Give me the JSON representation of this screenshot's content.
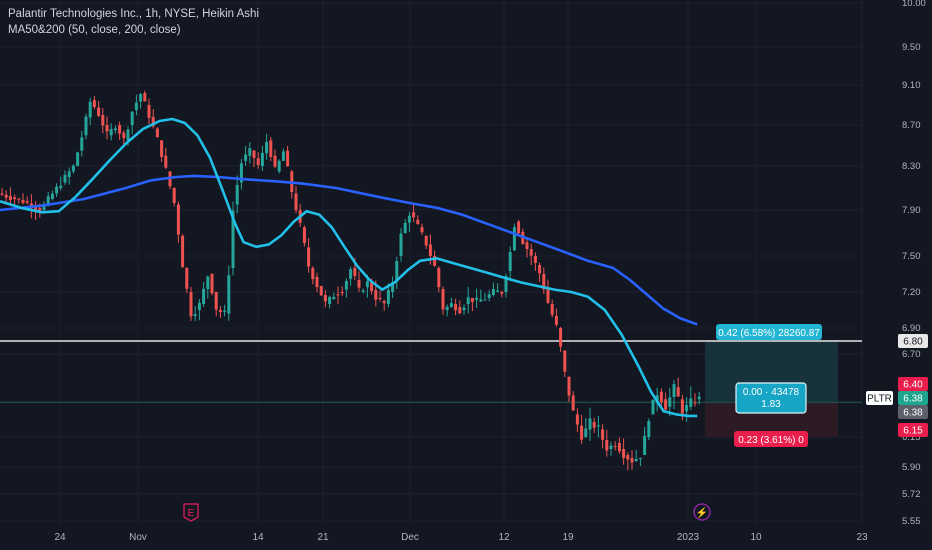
{
  "legend": {
    "title": "Palantir Technologies Inc., 1h, NYSE, Heikin Ashi",
    "indicator": "MA50&200 (50, close, 200, close)"
  },
  "chart_data": {
    "type": "candlestick",
    "symbol": "PLTR",
    "ylim": [
      5.55,
      10.0
    ],
    "y_ticks": [
      "10.00",
      "9.50",
      "9.10",
      "8.70",
      "8.30",
      "7.90",
      "7.50",
      "7.20",
      "6.90",
      "6.70",
      "6.15",
      "5.90",
      "5.72",
      "5.55"
    ],
    "x_ticks": [
      "24",
      "Nov",
      "14",
      "21",
      "Dec",
      "12",
      "19",
      "2023",
      "10",
      "23"
    ],
    "ma50": [
      [
        0,
        7.98
      ],
      [
        5,
        7.92
      ],
      [
        10,
        7.88
      ],
      [
        14,
        7.89
      ],
      [
        18,
        8.02
      ],
      [
        22,
        8.18
      ],
      [
        26,
        8.35
      ],
      [
        30,
        8.52
      ],
      [
        34,
        8.66
      ],
      [
        38,
        8.74
      ],
      [
        41,
        8.76
      ],
      [
        44,
        8.72
      ],
      [
        47,
        8.6
      ],
      [
        50,
        8.38
      ],
      [
        53,
        8.08
      ],
      [
        56,
        7.78
      ],
      [
        58,
        7.62
      ],
      [
        61,
        7.58
      ],
      [
        64,
        7.6
      ],
      [
        67,
        7.68
      ],
      [
        70,
        7.8
      ],
      [
        73,
        7.89
      ],
      [
        76,
        7.86
      ],
      [
        79,
        7.75
      ],
      [
        82,
        7.58
      ],
      [
        85,
        7.42
      ],
      [
        88,
        7.3
      ],
      [
        91,
        7.22
      ],
      [
        94,
        7.28
      ],
      [
        97,
        7.38
      ],
      [
        100,
        7.46
      ],
      [
        104,
        7.48
      ],
      [
        108,
        7.44
      ],
      [
        112,
        7.4
      ],
      [
        116,
        7.36
      ],
      [
        120,
        7.32
      ],
      [
        124,
        7.28
      ],
      [
        128,
        7.25
      ],
      [
        132,
        7.22
      ],
      [
        136,
        7.2
      ],
      [
        140,
        7.16
      ],
      [
        144,
        7.05
      ],
      [
        148,
        6.85
      ],
      [
        152,
        6.62
      ],
      [
        155,
        6.45
      ],
      [
        158,
        6.32
      ],
      [
        161,
        6.3
      ],
      [
        164,
        6.29
      ],
      [
        166,
        6.29
      ]
    ],
    "ma200": [
      [
        0,
        7.9
      ],
      [
        10,
        7.94
      ],
      [
        20,
        8.0
      ],
      [
        30,
        8.1
      ],
      [
        36,
        8.17
      ],
      [
        42,
        8.2
      ],
      [
        46,
        8.21
      ],
      [
        52,
        8.2
      ],
      [
        58,
        8.18
      ],
      [
        66,
        8.16
      ],
      [
        72,
        8.14
      ],
      [
        80,
        8.1
      ],
      [
        90,
        8.02
      ],
      [
        98,
        7.96
      ],
      [
        104,
        7.92
      ],
      [
        110,
        7.86
      ],
      [
        116,
        7.78
      ],
      [
        122,
        7.7
      ],
      [
        128,
        7.62
      ],
      [
        134,
        7.54
      ],
      [
        140,
        7.46
      ],
      [
        146,
        7.4
      ],
      [
        150,
        7.3
      ],
      [
        154,
        7.18
      ],
      [
        158,
        7.06
      ],
      [
        162,
        6.98
      ],
      [
        166,
        6.93
      ]
    ],
    "price_line": 6.38,
    "horizontal_line": 6.8,
    "position": {
      "entry": 6.38,
      "target": 6.8,
      "stop": 6.15,
      "target_label": "0.42 (6.58%) 28260.87",
      "center_label_1": "0.00 · 43478",
      "center_label_2": "1.83",
      "stop_label": "0.23 (3.61%) 0"
    },
    "axis_tags": {
      "target": "6.80",
      "entry_top": "6.40",
      "symbol": "PLTR",
      "last": "6.38",
      "last2": "6.38",
      "stop": "6.15"
    },
    "event_markers": [
      "E",
      "⚡"
    ]
  }
}
